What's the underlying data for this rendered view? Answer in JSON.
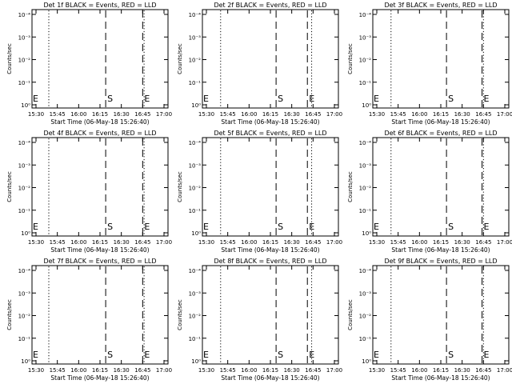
{
  "figure": {
    "background": "#ffffff",
    "foreground": "#000000"
  },
  "chart_data": [
    {
      "type": "line",
      "title": "Det 1f BLACK = Events, RED = LLD",
      "xlabel": "Start Time (06-May-18 15:26:40)",
      "ylabel": "Counts/sec",
      "x_ticks": [
        "15:30",
        "15:45",
        "16:00",
        "16:15",
        "16:30",
        "16:45",
        "17:00"
      ],
      "y_ticks": [
        "10⁰",
        "10⁻¹",
        "10⁻²",
        "10⁻³",
        "10⁻⁴"
      ],
      "y_scale": "log",
      "series": [],
      "markers": [
        {
          "label": "S",
          "time": "16:19",
          "style": "dashed"
        },
        {
          "label": "E",
          "time": "16:45",
          "style": "dashed"
        },
        {
          "label": "",
          "time": "15:39",
          "style": "dotted"
        },
        {
          "label": "",
          "time": "16:46",
          "style": "dotted"
        }
      ],
      "edge_labels": [
        {
          "label": "E",
          "time": "15:27"
        }
      ],
      "grid": false
    },
    {
      "type": "line",
      "title": "Det 2f BLACK = Events, RED = LLD",
      "xlabel": "Start Time (06-May-18 15:26:40)",
      "ylabel": "Counts/sec",
      "x_ticks": [
        "15:30",
        "15:45",
        "16:00",
        "16:15",
        "16:30",
        "16:45",
        "17:00"
      ],
      "y_ticks": [
        "10⁰",
        "10⁻¹",
        "10⁻²",
        "10⁻³",
        "10⁻⁴"
      ],
      "y_scale": "log",
      "series": [],
      "markers": [
        {
          "label": "S",
          "time": "16:19",
          "style": "dashed"
        },
        {
          "label": "E",
          "time": "16:41",
          "style": "dashed"
        },
        {
          "label": "",
          "time": "15:40",
          "style": "dotted"
        },
        {
          "label": "",
          "time": "16:44",
          "style": "dotted"
        }
      ],
      "edge_labels": [
        {
          "label": "E",
          "time": "15:27"
        }
      ],
      "grid": false
    },
    {
      "type": "line",
      "title": "Det 3f BLACK = Events, RED = LLD",
      "xlabel": "Start Time (06-May-18 15:26:40)",
      "ylabel": "Counts/sec",
      "x_ticks": [
        "15:30",
        "15:45",
        "16:00",
        "16:15",
        "16:30",
        "16:45",
        "17:00"
      ],
      "y_ticks": [
        "10⁰",
        "10⁻¹",
        "10⁻²",
        "10⁻³",
        "10⁻⁴"
      ],
      "y_scale": "log",
      "series": [],
      "markers": [
        {
          "label": "S",
          "time": "16:19",
          "style": "dashed"
        },
        {
          "label": "E",
          "time": "16:44",
          "style": "dashed"
        },
        {
          "label": "",
          "time": "15:40",
          "style": "dotted"
        },
        {
          "label": "",
          "time": "16:45",
          "style": "dotted"
        }
      ],
      "edge_labels": [
        {
          "label": "E",
          "time": "15:27"
        }
      ],
      "grid": false
    },
    {
      "type": "line",
      "title": "Det 4f BLACK = Events, RED = LLD",
      "xlabel": "Start Time (06-May-18 15:26:40)",
      "ylabel": "Counts/sec",
      "x_ticks": [
        "15:30",
        "15:45",
        "16:00",
        "16:15",
        "16:30",
        "16:45",
        "17:00"
      ],
      "y_ticks": [
        "10⁰",
        "10⁻¹",
        "10⁻²",
        "10⁻³",
        "10⁻⁴"
      ],
      "y_scale": "log",
      "series": [],
      "markers": [
        {
          "label": "S",
          "time": "16:19",
          "style": "dashed"
        },
        {
          "label": "E",
          "time": "16:45",
          "style": "dashed"
        },
        {
          "label": "",
          "time": "15:39",
          "style": "dotted"
        },
        {
          "label": "",
          "time": "16:46",
          "style": "dotted"
        }
      ],
      "edge_labels": [
        {
          "label": "E",
          "time": "15:27"
        }
      ],
      "grid": false
    },
    {
      "type": "line",
      "title": "Det 5f BLACK = Events, RED = LLD",
      "xlabel": "Start Time (06-May-18 15:26:40)",
      "ylabel": "Counts/sec",
      "x_ticks": [
        "15:30",
        "15:45",
        "16:00",
        "16:15",
        "16:30",
        "16:45",
        "17:00"
      ],
      "y_ticks": [
        "10⁰",
        "10⁻¹",
        "10⁻²",
        "10⁻³",
        "10⁻⁴"
      ],
      "y_scale": "log",
      "series": [],
      "markers": [
        {
          "label": "S",
          "time": "16:19",
          "style": "dashed"
        },
        {
          "label": "E",
          "time": "16:41",
          "style": "dashed"
        },
        {
          "label": "",
          "time": "15:40",
          "style": "dotted"
        },
        {
          "label": "",
          "time": "16:44",
          "style": "dotted"
        }
      ],
      "edge_labels": [
        {
          "label": "E",
          "time": "15:27"
        }
      ],
      "grid": false
    },
    {
      "type": "line",
      "title": "Det 6f BLACK = Events, RED = LLD",
      "xlabel": "Start Time (06-May-18 15:26:40)",
      "ylabel": "Counts/sec",
      "x_ticks": [
        "15:30",
        "15:45",
        "16:00",
        "16:15",
        "16:30",
        "16:45",
        "17:00"
      ],
      "y_ticks": [
        "10⁰",
        "10⁻¹",
        "10⁻²",
        "10⁻³",
        "10⁻⁴"
      ],
      "y_scale": "log",
      "series": [],
      "markers": [
        {
          "label": "S",
          "time": "16:19",
          "style": "dashed"
        },
        {
          "label": "E",
          "time": "16:44",
          "style": "dashed"
        },
        {
          "label": "",
          "time": "15:40",
          "style": "dotted"
        },
        {
          "label": "",
          "time": "16:45",
          "style": "dotted"
        }
      ],
      "edge_labels": [
        {
          "label": "E",
          "time": "15:27"
        }
      ],
      "grid": false
    },
    {
      "type": "line",
      "title": "Det 7f BLACK = Events, RED = LLD",
      "xlabel": "Start Time (06-May-18 15:26:40)",
      "ylabel": "Counts/sec",
      "x_ticks": [
        "15:30",
        "15:45",
        "16:00",
        "16:15",
        "16:30",
        "16:45",
        "17:00"
      ],
      "y_ticks": [
        "10⁰",
        "10⁻¹",
        "10⁻²",
        "10⁻³",
        "10⁻⁴"
      ],
      "y_scale": "log",
      "series": [],
      "markers": [
        {
          "label": "S",
          "time": "16:19",
          "style": "dashed"
        },
        {
          "label": "E",
          "time": "16:45",
          "style": "dashed"
        },
        {
          "label": "",
          "time": "15:39",
          "style": "dotted"
        },
        {
          "label": "",
          "time": "16:46",
          "style": "dotted"
        }
      ],
      "edge_labels": [
        {
          "label": "E",
          "time": "15:27"
        }
      ],
      "grid": false
    },
    {
      "type": "line",
      "title": "Det 8f BLACK = Events, RED = LLD",
      "xlabel": "Start Time (06-May-18 15:26:40)",
      "ylabel": "Counts/sec",
      "x_ticks": [
        "15:30",
        "15:45",
        "16:00",
        "16:15",
        "16:30",
        "16:45",
        "17:00"
      ],
      "y_ticks": [
        "10⁰",
        "10⁻¹",
        "10⁻²",
        "10⁻³",
        "10⁻⁴"
      ],
      "y_scale": "log",
      "series": [],
      "markers": [
        {
          "label": "S",
          "time": "16:19",
          "style": "dashed"
        },
        {
          "label": "E",
          "time": "16:41",
          "style": "dashed"
        },
        {
          "label": "",
          "time": "15:40",
          "style": "dotted"
        },
        {
          "label": "",
          "time": "16:44",
          "style": "dotted"
        }
      ],
      "edge_labels": [
        {
          "label": "E",
          "time": "15:27"
        }
      ],
      "grid": false
    },
    {
      "type": "line",
      "title": "Det 9f BLACK = Events, RED = LLD",
      "xlabel": "Start Time (06-May-18 15:26:40)",
      "ylabel": "Counts/sec",
      "x_ticks": [
        "15:30",
        "15:45",
        "16:00",
        "16:15",
        "16:30",
        "16:45",
        "17:00"
      ],
      "y_ticks": [
        "10⁰",
        "10⁻¹",
        "10⁻²",
        "10⁻³",
        "10⁻⁴"
      ],
      "y_scale": "log",
      "series": [],
      "markers": [
        {
          "label": "S",
          "time": "16:19",
          "style": "dashed"
        },
        {
          "label": "E",
          "time": "16:44",
          "style": "dashed"
        },
        {
          "label": "",
          "time": "15:40",
          "style": "dotted"
        },
        {
          "label": "",
          "time": "16:45",
          "style": "dotted"
        }
      ],
      "edge_labels": [
        {
          "label": "E",
          "time": "15:27"
        }
      ],
      "grid": false
    }
  ]
}
